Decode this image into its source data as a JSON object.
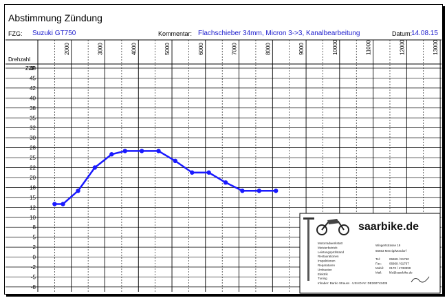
{
  "header": {
    "title": "Abstimmung Zündung",
    "fzg_label": "FZG:",
    "fzg_value": "Suzuki GT750",
    "comment_label": "Kommentar:",
    "comment_value": "Flachschieber 34mm, Micron 3->3, Kanalbearbeitung",
    "date_label": "Datum:",
    "date_value": "14.08.15"
  },
  "ad": {
    "brand": "saarbike.de",
    "services": [
      "Motorradwerkstatt",
      "Meisterbetrieb",
      "Leistungsprüfstand",
      "Restaurationen",
      "Inspektionen",
      "Reparaturen",
      "Umbauten",
      "Elektrik",
      "Tuning"
    ],
    "address_street": "Wingertstrasse 19",
    "address_city": "66663 Merzig/Mondorf",
    "contact": [
      "Tel:",
      "06869 / 91760",
      "Fax:",
      "06869 / 91767",
      "Mobil:",
      "0170 / 4733999",
      "Mail:",
      "kfz@saarbike.de"
    ],
    "footer": "Inhaber: Bardo Strauss · USt-ID-Nr: DE260743435"
  },
  "chart_data": {
    "type": "line",
    "ylabel_top": "Drehzahl",
    "ylabel_sub": "ZZP",
    "x_ticks": [
      2000,
      3000,
      4000,
      5000,
      6000,
      7000,
      8000,
      9000,
      10000,
      11000,
      12000,
      13000
    ],
    "y_ticks": [
      48,
      45,
      42,
      40,
      38,
      35,
      32,
      30,
      28,
      25,
      22,
      20,
      18,
      15,
      12,
      10,
      8,
      5,
      2,
      0,
      -2,
      -5,
      -8
    ],
    "series": [
      {
        "color": "#1a1aff",
        "x": [
          1500,
          1750,
          2200,
          2700,
          3200,
          3600,
          4100,
          4600,
          5100,
          5600,
          6100,
          6600,
          7100,
          7600,
          8100
        ],
        "y": [
          13,
          13,
          17,
          22,
          26,
          27,
          27,
          27,
          24,
          21,
          21,
          19,
          17,
          17,
          17
        ]
      }
    ]
  }
}
